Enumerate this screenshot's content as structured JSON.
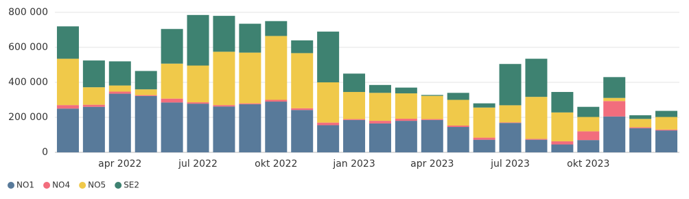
{
  "chart_data": {
    "type": "stacked-bar",
    "categories": [
      null,
      null,
      "apr 2022",
      null,
      null,
      "jul 2022",
      null,
      null,
      "okt 2022",
      null,
      null,
      "jan 2023",
      null,
      null,
      "apr 2023",
      null,
      null,
      "jul 2023",
      null,
      null,
      "okt 2023",
      null,
      null,
      null
    ],
    "series": [
      {
        "name": "NO1",
        "color": "#587a9a",
        "values": [
          250000,
          260000,
          335000,
          322000,
          285000,
          278000,
          262000,
          275000,
          290000,
          242000,
          155000,
          185000,
          165000,
          180000,
          185000,
          145000,
          72000,
          168000,
          72000,
          45000,
          70000,
          205000,
          138000,
          125000
        ]
      },
      {
        "name": "NO4",
        "color": "#f26d7d",
        "values": [
          20000,
          12000,
          12000,
          5000,
          22000,
          8000,
          8000,
          5000,
          10000,
          10000,
          15000,
          5000,
          15000,
          12000,
          5000,
          8000,
          12000,
          3000,
          5000,
          18000,
          50000,
          88000,
          5000,
          5000
        ]
      },
      {
        "name": "NO5",
        "color": "#f0c94a",
        "values": [
          265000,
          100000,
          35000,
          33000,
          200000,
          210000,
          305000,
          290000,
          365000,
          315000,
          230000,
          155000,
          160000,
          145000,
          133000,
          147000,
          172000,
          98000,
          240000,
          165000,
          82000,
          18000,
          48000,
          72000
        ]
      },
      {
        "name": "SE2",
        "color": "#3e8271",
        "values": [
          185000,
          153000,
          138000,
          105000,
          198000,
          289000,
          205000,
          165000,
          85000,
          73000,
          290000,
          105000,
          45000,
          33000,
          5000,
          40000,
          24000,
          236000,
          218000,
          117000,
          58000,
          119000,
          21000,
          35000
        ]
      }
    ],
    "ylim": [
      0,
      800000
    ],
    "yticks": [
      0,
      {
        "value": 200000,
        "label": "200 000"
      },
      {
        "value": 400000,
        "label": "400 000"
      },
      {
        "value": 600000,
        "label": "600 000"
      },
      {
        "value": 800000,
        "label": "800 000"
      }
    ],
    "grid": true,
    "legend": "bottom-left"
  }
}
